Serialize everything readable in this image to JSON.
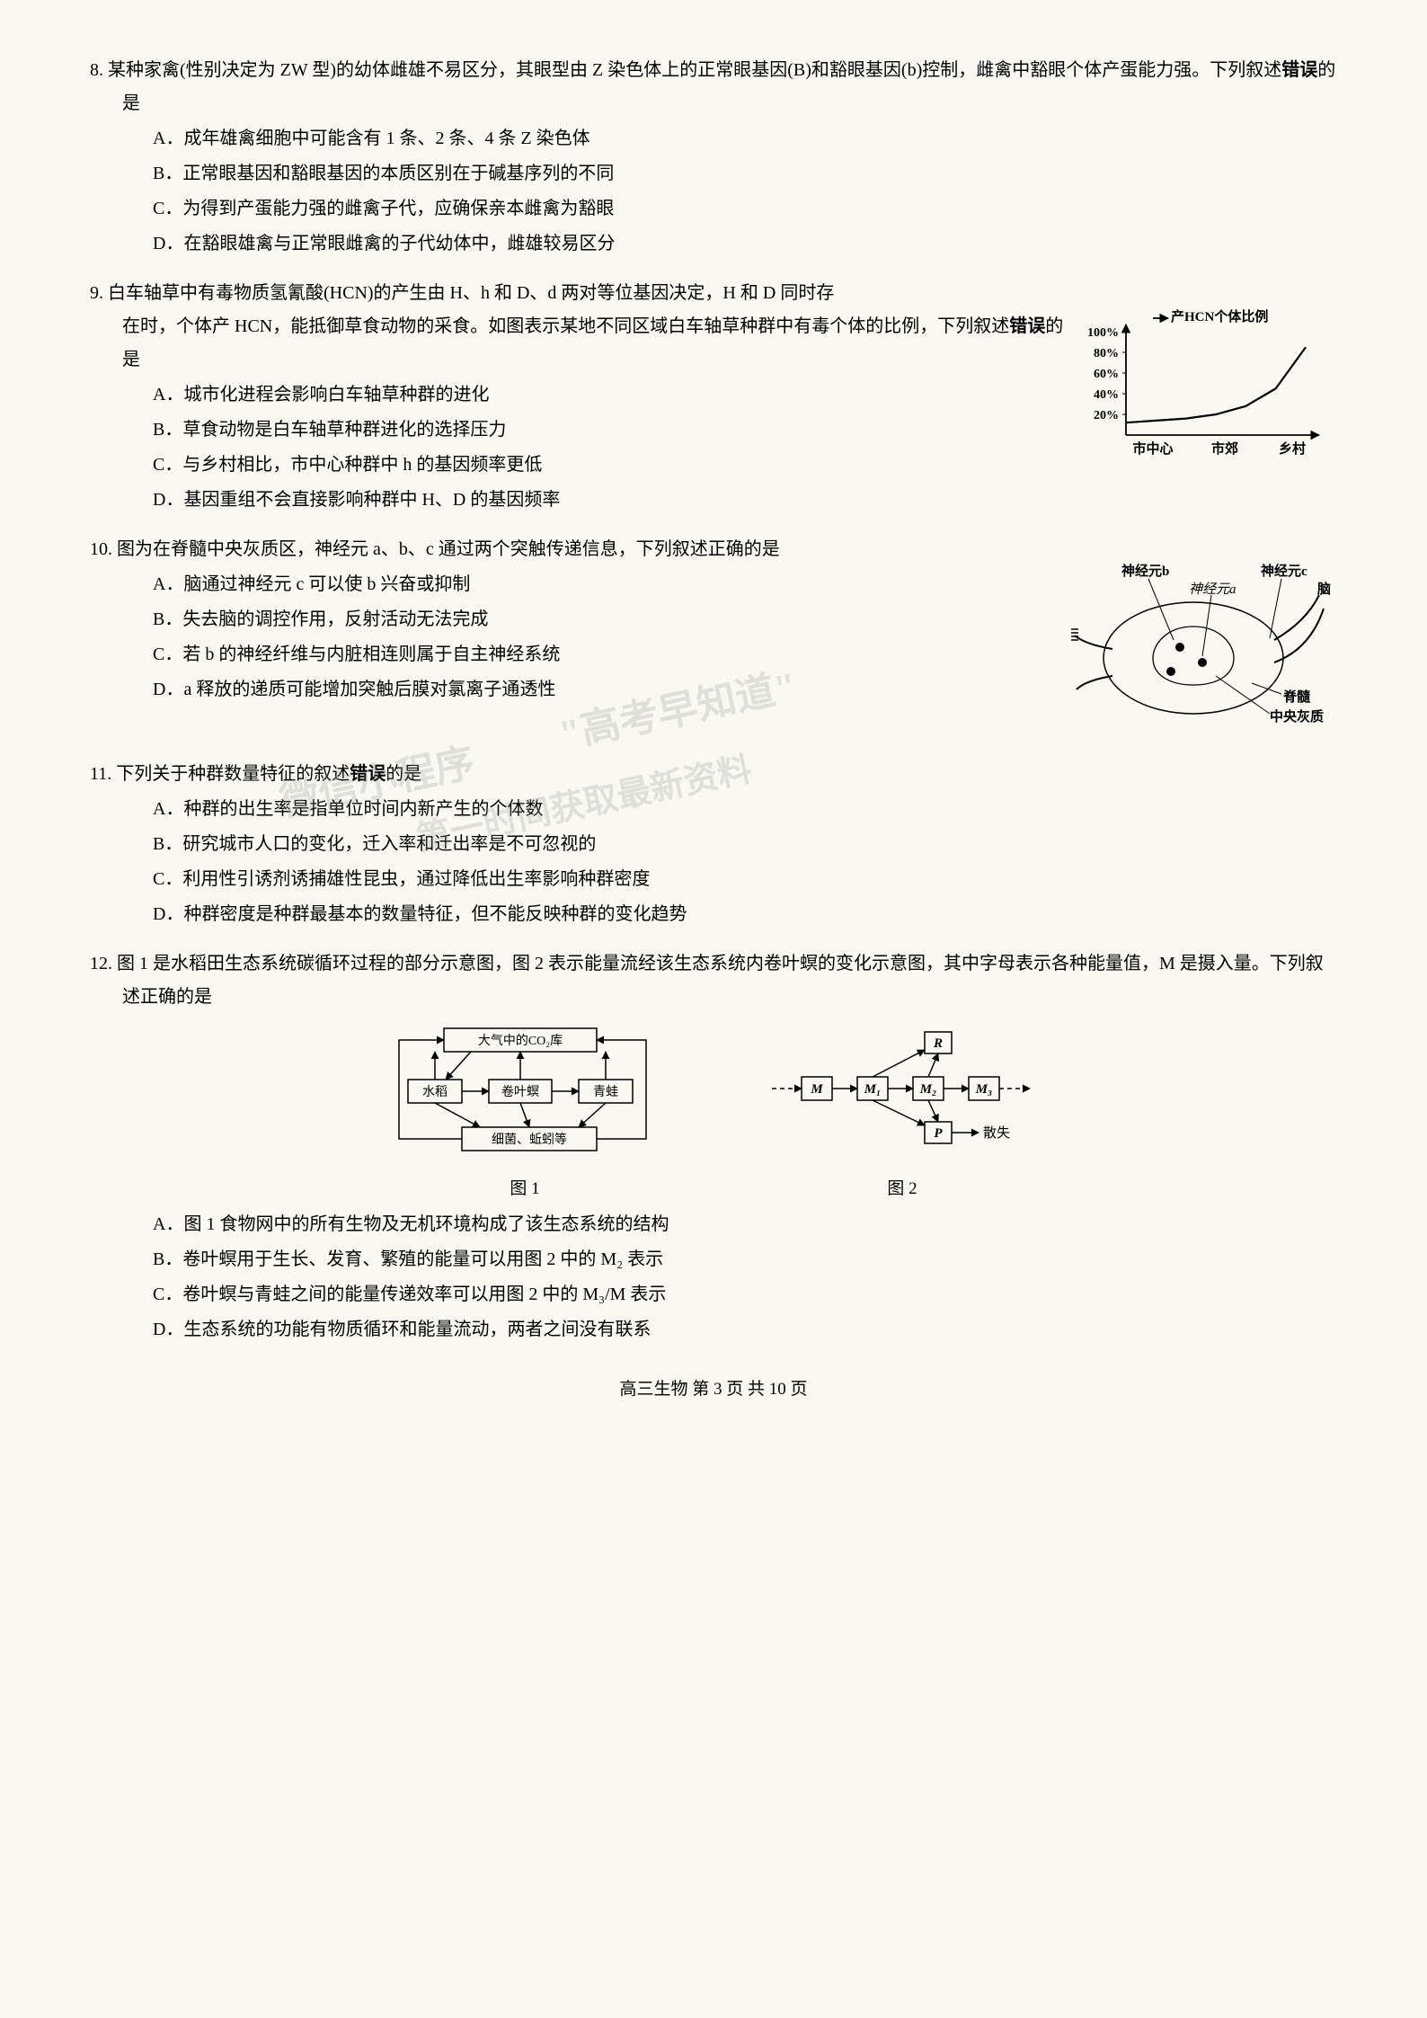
{
  "questions": {
    "q8": {
      "num": "8.",
      "stem1": "某种家禽(性别决定为 ZW 型)的幼体雌雄不易区分，其眼型由 Z 染色体上的正常眼基因(B)和豁眼基因(b)控制，雌禽中豁眼个体产蛋能力强。下列叙述",
      "stem_bold": "错误",
      "stem2": "的是",
      "optA": "A．成年雄禽细胞中可能含有 1 条、2 条、4 条 Z 染色体",
      "optB": "B．正常眼基因和豁眼基因的本质区别在于碱基序列的不同",
      "optC": "C．为得到产蛋能力强的雌禽子代，应确保亲本雌禽为豁眼",
      "optD": "D．在豁眼雄禽与正常眼雌禽的子代幼体中，雌雄较易区分"
    },
    "q9": {
      "num": "9.",
      "stem1": "白车轴草中有毒物质氢氰酸(HCN)的产生由 H、h 和 D、d 两对等位基因决定，H 和 D 同时存在时，个体产 HCN，能抵御草食动物的采食。如图表示某地不同区域白车轴草种群中有毒个体的比例，下列叙述",
      "stem_bold": "错误",
      "stem2": "的是",
      "optA": "A．城市化进程会影响白车轴草种群的进化",
      "optB": "B．草食动物是白车轴草种群进化的选择压力",
      "optC": "C．与乡村相比，市中心种群中 h 的基因频率更低",
      "optD": "D．基因重组不会直接影响种群中 H、D 的基因频率",
      "chart": {
        "type": "line",
        "title": "产HCN个体比例",
        "ylabels": [
          "20%",
          "40%",
          "60%",
          "80%",
          "100%"
        ],
        "xlabels": [
          "市中心",
          "市郊",
          "乡村"
        ],
        "line_color": "#000000",
        "points_y": [
          12,
          14,
          16,
          20,
          28,
          45,
          85
        ],
        "ymax": 100
      }
    },
    "q10": {
      "num": "10.",
      "stem": "图为在脊髓中央灰质区，神经元 a、b、c 通过两个突触传递信息，下列叙述正确的是",
      "optA": "A．脑通过神经元 c 可以使 b 兴奋或抑制",
      "optB": "B．失去脑的调控作用，反射活动无法完成",
      "optC": "C．若 b 的神经纤维与内脏相连则属于自主神经系统",
      "optD": "D．a 释放的递质可能增加突触后膜对氯离子通透性",
      "labels": {
        "nb": "神经元b",
        "nc": "神经元c",
        "na": "神经元a",
        "brain": "脑",
        "spinal": "脊髓",
        "gray": "中央灰质"
      }
    },
    "q11": {
      "num": "11.",
      "stem1": "下列关于种群数量特征的叙述",
      "stem_bold": "错误",
      "stem2": "的是",
      "optA": "A．种群的出生率是指单位时间内新产生的个体数",
      "optB": "B．研究城市人口的变化，迁入率和迁出率是不可忽视的",
      "optC": "C．利用性引诱剂诱捕雄性昆虫，通过降低出生率影响种群密度",
      "optD": "D．种群密度是种群最基本的数量特征，但不能反映种群的变化趋势"
    },
    "q12": {
      "num": "12.",
      "stem": "图 1 是水稻田生态系统碳循环过程的部分示意图，图 2 表示能量流经该生态系统内卷叶螟的变化示意图，其中字母表示各种能量值，M 是摄入量。下列叙述正确的是",
      "fig1_label": "图 1",
      "fig2_label": "图 2",
      "fig1": {
        "co2": "大气中的CO₂库",
        "rice": "水稻",
        "worm": "卷叶螟",
        "frog": "青蛙",
        "bacteria": "细菌、蚯蚓等"
      },
      "fig2": {
        "M": "M",
        "M1": "M₁",
        "M2": "M₂",
        "M3": "M₃",
        "R": "R",
        "P": "P",
        "dissipate": "散失"
      },
      "optA": "A．图 1 食物网中的所有生物及无机环境构成了该生态系统的结构",
      "optB": "B．卷叶螟用于生长、发育、繁殖的能量可以用图 2 中的 M₂ 表示",
      "optC": "C．卷叶螟与青蛙之间的能量传递效率可以用图 2 中的 M₃/M 表示",
      "optD": "D．生态系统的功能有物质循环和能量流动，两者之间没有联系"
    }
  },
  "footer": "高三生物  第 3 页  共 10 页",
  "watermarks": {
    "w1": "\"高考早知道\"",
    "w2": "微信小程序",
    "w3": "第一时间获取最新资料"
  }
}
